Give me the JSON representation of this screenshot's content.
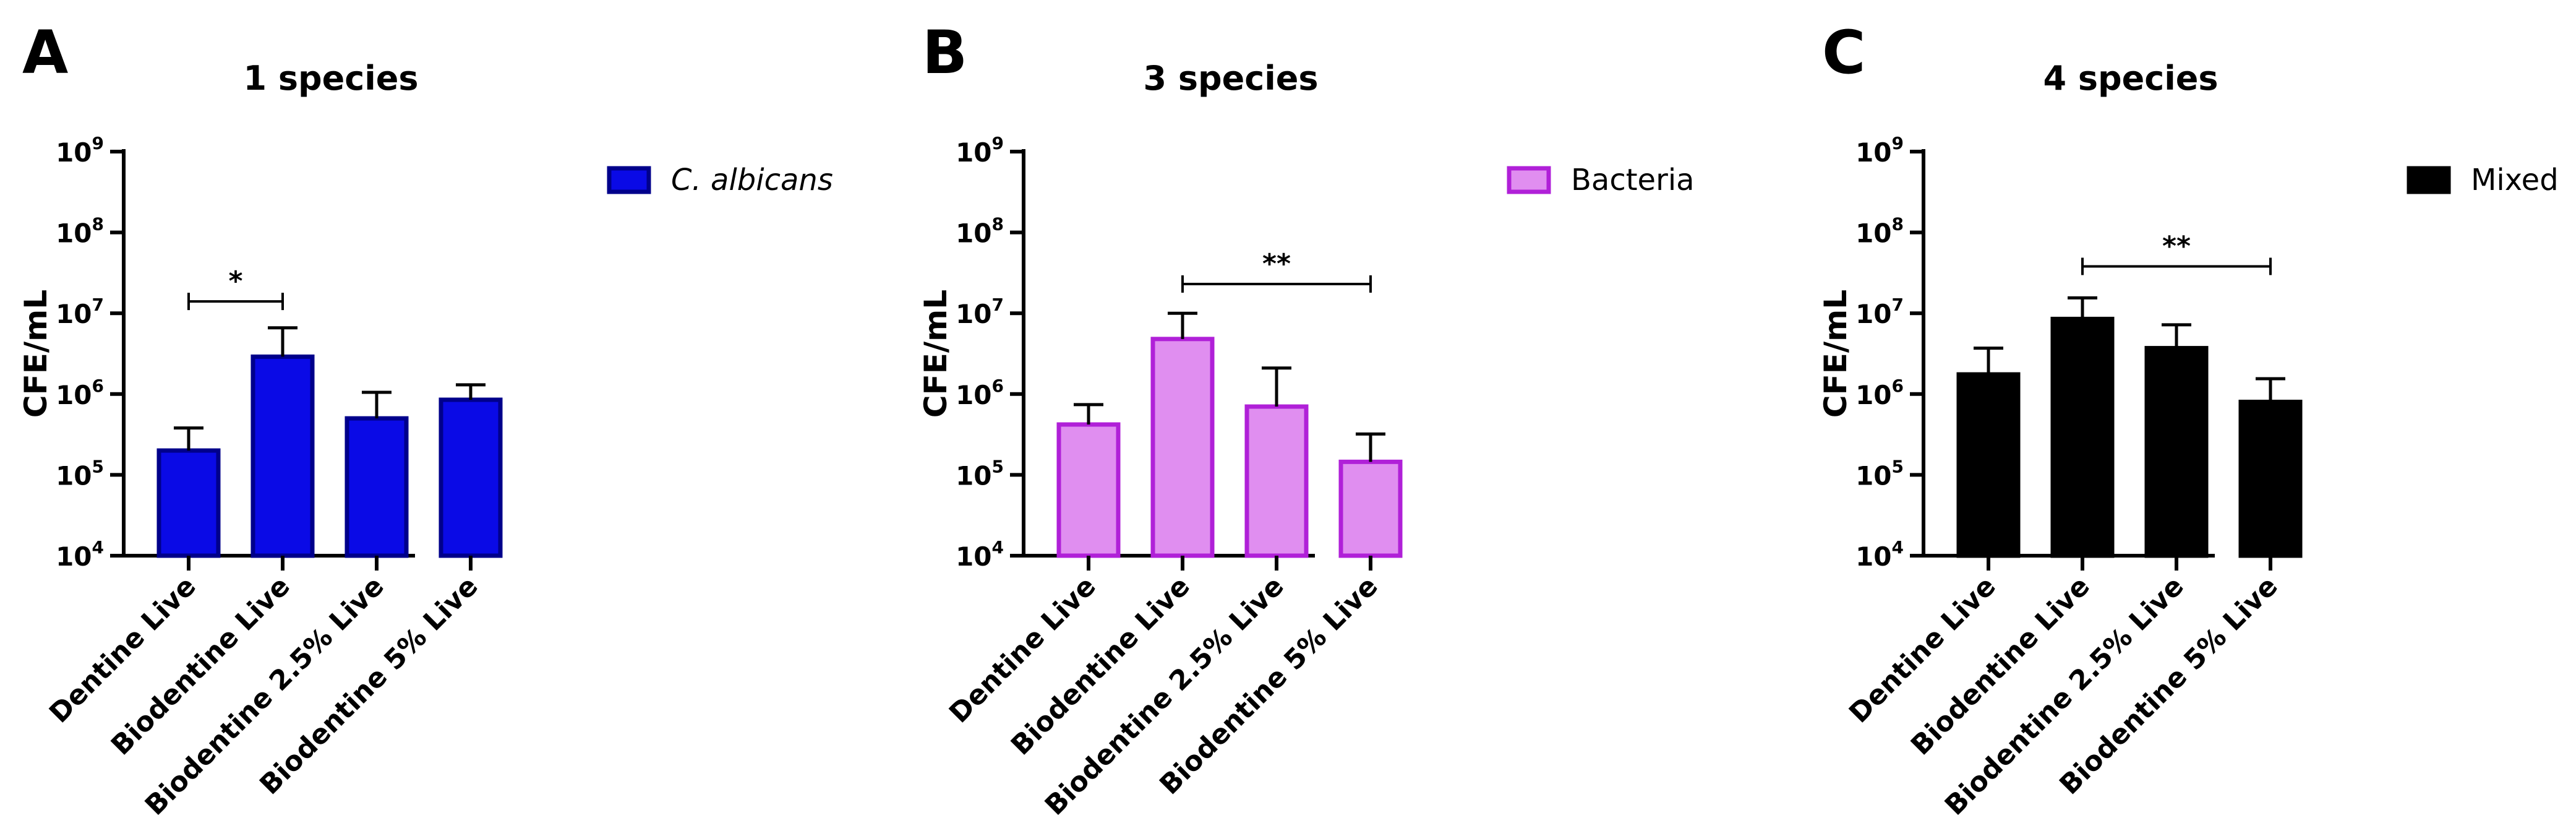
{
  "chart_data": [
    {
      "type": "bar",
      "panel": "A",
      "title": "1 species",
      "ylabel": "CFE/mL",
      "xlabel": "",
      "yscale": "log",
      "ylim": [
        10000,
        1000000000
      ],
      "yticks": [
        {
          "base": "10",
          "exp": "4"
        },
        {
          "base": "10",
          "exp": "5"
        },
        {
          "base": "10",
          "exp": "6"
        },
        {
          "base": "10",
          "exp": "7"
        },
        {
          "base": "10",
          "exp": "8"
        },
        {
          "base": "10",
          "exp": "9"
        }
      ],
      "categories": [
        "Dentine Live",
        "Biodentine Live",
        "Biodentine 2.5% Live",
        "Biodentine 5% Live"
      ],
      "series": [
        {
          "name": "C. albicans",
          "values": [
            200000,
            2900000,
            500000,
            850000
          ],
          "error_upper": [
            380000,
            6600000,
            1050000,
            1300000
          ]
        }
      ],
      "legend": {
        "label": "C. albicans",
        "italic": true,
        "position": "right"
      },
      "colors": {
        "fill": "#0a0ae6",
        "stroke": "#00008b"
      },
      "significance": [
        {
          "from": 0,
          "to": 1,
          "label": "*",
          "y": 14000000
        }
      ]
    },
    {
      "type": "bar",
      "panel": "B",
      "title": "3 species",
      "ylabel": "CFE/mL",
      "xlabel": "",
      "yscale": "log",
      "ylim": [
        10000,
        1000000000
      ],
      "yticks": [
        {
          "base": "10",
          "exp": "4"
        },
        {
          "base": "10",
          "exp": "5"
        },
        {
          "base": "10",
          "exp": "6"
        },
        {
          "base": "10",
          "exp": "7"
        },
        {
          "base": "10",
          "exp": "8"
        },
        {
          "base": "10",
          "exp": "9"
        }
      ],
      "categories": [
        "Dentine Live",
        "Biodentine Live",
        "Biodentine 2.5% Live",
        "Biodentine 5% Live"
      ],
      "series": [
        {
          "name": "Bacteria",
          "values": [
            420000,
            4800000,
            700000,
            145000
          ],
          "error_upper": [
            740000,
            10000000,
            2100000,
            320000
          ]
        }
      ],
      "legend": {
        "label": "Bacteria",
        "italic": false,
        "position": "right"
      },
      "colors": {
        "fill": "#e08ef0",
        "stroke": "#b020d8"
      },
      "significance": [
        {
          "from": 1,
          "to": 3,
          "label": "**",
          "y": 23000000
        }
      ]
    },
    {
      "type": "bar",
      "panel": "C",
      "title": "4 species",
      "ylabel": "CFE/mL",
      "xlabel": "",
      "yscale": "log",
      "ylim": [
        10000,
        1000000000
      ],
      "yticks": [
        {
          "base": "10",
          "exp": "4"
        },
        {
          "base": "10",
          "exp": "5"
        },
        {
          "base": "10",
          "exp": "6"
        },
        {
          "base": "10",
          "exp": "7"
        },
        {
          "base": "10",
          "exp": "8"
        },
        {
          "base": "10",
          "exp": "9"
        }
      ],
      "categories": [
        "Dentine Live",
        "Biodentine Live",
        "Biodentine 2.5% Live",
        "Biodentine 5% Live"
      ],
      "series": [
        {
          "name": "Mixed",
          "values": [
            1750000,
            8500000,
            3700000,
            800000
          ],
          "error_upper": [
            3700000,
            15500000,
            7200000,
            1550000
          ]
        }
      ],
      "legend": {
        "label": "Mixed",
        "italic": false,
        "position": "right"
      },
      "colors": {
        "fill": "#000000",
        "stroke": "#000000"
      },
      "significance": [
        {
          "from": 1,
          "to": 3,
          "label": "**",
          "y": 38000000
        }
      ]
    }
  ]
}
